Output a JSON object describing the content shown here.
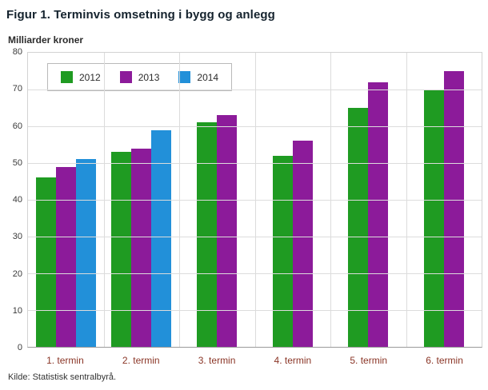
{
  "chart_data": {
    "type": "bar",
    "title": "Figur 1. Terminvis omsetning i bygg og anlegg",
    "unit_label": "Milliarder kroner",
    "categories": [
      "1. termin",
      "2. termin",
      "3. termin",
      "4. termin",
      "5. termin",
      "6. termin"
    ],
    "series": [
      {
        "name": "2012",
        "color": "#1f9b22",
        "values": [
          46,
          53,
          61,
          52,
          65,
          70
        ]
      },
      {
        "name": "2013",
        "color": "#8c1b9a",
        "values": [
          49,
          54,
          63,
          56,
          72,
          75
        ]
      },
      {
        "name": "2014",
        "color": "#2290d9",
        "values": [
          51,
          59,
          null,
          null,
          null,
          null
        ]
      }
    ],
    "ylim": [
      0,
      80
    ],
    "ytick_step": 10,
    "grid": true,
    "legend_position": "top-left",
    "source": "Kilde: Statistisk sentralbyrå."
  }
}
